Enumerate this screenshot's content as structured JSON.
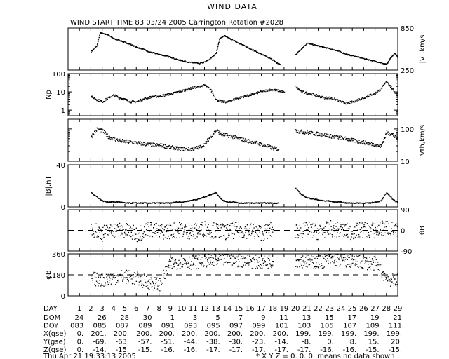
{
  "title": "WIND DATA",
  "subtitle": "WIND START TIME  83 03/24 2005 Carrington Rotation #2028",
  "footer_left": "Thu Apr 21 19:33:13 2005",
  "footer_right": "* X Y Z = 0. 0. 0. means no data shown",
  "chart_data": [
    {
      "type": "scatter",
      "name": "speed",
      "ylabel": "|V|,km/s",
      "ylabel_side": "right",
      "ylim": [
        250,
        850
      ],
      "yticks": [
        250,
        850
      ],
      "x": [
        1.0,
        1.5,
        2.0,
        2.5,
        2.8,
        3.0,
        3.5,
        4.0,
        4.5,
        5.0,
        5.5,
        6.0,
        6.5,
        7.0,
        7.5,
        8.0,
        8.5,
        9.0,
        9.5,
        10.0,
        10.5,
        11.0,
        11.5,
        12.0,
        12.5,
        13.0,
        13.3,
        13.7,
        14.0,
        14.5,
        15.0,
        15.5,
        16.0,
        16.5,
        17.0,
        17.5,
        18.0,
        18.3,
        18.7,
        19.0,
        19.3,
        19.7,
        20.0,
        20.5,
        21.0,
        21.5,
        22.0,
        22.5,
        23.0,
        23.5,
        24.0,
        24.5,
        25.0,
        25.5,
        26.0,
        26.5,
        27.0,
        27.5,
        27.8,
        28.0,
        28.3,
        28.7,
        29.0
      ],
      "values": [
        null,
        null,
        520,
        600,
        790,
        780,
        760,
        700,
        680,
        650,
        620,
        580,
        560,
        520,
        500,
        480,
        460,
        440,
        410,
        390,
        370,
        360,
        350,
        370,
        420,
        500,
        700,
        750,
        720,
        680,
        640,
        600,
        560,
        520,
        480,
        440,
        400,
        360,
        330,
        null,
        null,
        null,
        480,
        560,
        640,
        620,
        600,
        580,
        560,
        540,
        510,
        480,
        460,
        440,
        420,
        400,
        380,
        360,
        340,
        340,
        420,
        500,
        430
      ]
    },
    {
      "type": "scatter",
      "name": "density",
      "ylabel": "Np",
      "ylabel_side": "left",
      "yscale": "log",
      "ylim": [
        0.5,
        100
      ],
      "yticks": [
        1,
        10,
        100
      ],
      "x": [
        1.0,
        1.5,
        2.0,
        2.5,
        3.0,
        3.5,
        4.0,
        4.5,
        5.0,
        5.5,
        6.0,
        6.5,
        7.0,
        7.5,
        8.0,
        8.5,
        9.0,
        9.5,
        10.0,
        10.5,
        11.0,
        11.5,
        12.0,
        12.5,
        13.0,
        13.5,
        14.0,
        14.5,
        15.0,
        15.5,
        16.0,
        16.5,
        17.0,
        17.5,
        18.0,
        18.5,
        19.0,
        19.5,
        20.0,
        20.5,
        21.0,
        21.5,
        22.0,
        22.5,
        23.0,
        23.5,
        24.0,
        24.5,
        25.0,
        25.5,
        26.0,
        26.5,
        27.0,
        27.5,
        28.0,
        28.5,
        29.0
      ],
      "values": [
        null,
        null,
        6,
        4,
        3,
        5,
        7,
        5,
        4,
        3,
        3,
        4,
        5,
        6,
        6,
        7,
        8,
        10,
        12,
        15,
        18,
        20,
        25,
        14,
        4,
        3,
        3,
        4,
        5,
        6,
        7,
        9,
        11,
        13,
        14,
        12,
        10,
        null,
        20,
        11,
        9,
        8,
        6,
        5,
        5,
        4,
        3,
        2.5,
        3,
        4,
        5,
        7,
        9,
        15,
        40,
        15,
        6
      ]
    },
    {
      "type": "scatter",
      "name": "thermal-speed",
      "ylabel": "Vth,km/s",
      "ylabel_side": "right",
      "yscale": "log",
      "ylim": [
        10,
        200
      ],
      "yticks": [
        10,
        100
      ],
      "x": [
        1.0,
        1.5,
        2.0,
        2.5,
        3.0,
        3.5,
        4.0,
        4.5,
        5.0,
        5.5,
        6.0,
        6.5,
        7.0,
        7.5,
        8.0,
        8.5,
        9.0,
        9.5,
        10.0,
        10.5,
        11.0,
        11.5,
        12.0,
        12.5,
        13.0,
        13.5,
        14.0,
        14.5,
        15.0,
        15.5,
        16.0,
        16.5,
        17.0,
        17.5,
        18.0,
        18.5,
        19.0,
        19.5,
        20.0,
        20.5,
        21.0,
        21.5,
        22.0,
        22.5,
        23.0,
        23.5,
        24.0,
        24.5,
        25.0,
        25.5,
        26.0,
        26.5,
        27.0,
        27.5,
        28.0,
        28.5,
        29.0
      ],
      "values": [
        null,
        null,
        60,
        100,
        90,
        60,
        50,
        45,
        42,
        40,
        38,
        36,
        34,
        33,
        32,
        30,
        28,
        26,
        25,
        24,
        25,
        28,
        35,
        60,
        95,
        70,
        65,
        58,
        52,
        46,
        42,
        38,
        34,
        30,
        26,
        24,
        null,
        null,
        90,
        85,
        80,
        75,
        72,
        68,
        62,
        58,
        55,
        50,
        46,
        42,
        40,
        36,
        33,
        30,
        80,
        70,
        45
      ]
    },
    {
      "type": "scatter",
      "name": "magnetic-field",
      "ylabel": "|B|,nT",
      "ylabel_side": "left",
      "ylim": [
        0,
        40
      ],
      "yticks": [
        0,
        40
      ],
      "x": [
        1.0,
        1.5,
        2.0,
        2.5,
        3.0,
        3.5,
        4.0,
        4.5,
        5.0,
        5.5,
        6.0,
        6.5,
        7.0,
        7.5,
        8.0,
        8.5,
        9.0,
        9.5,
        10.0,
        10.5,
        11.0,
        11.5,
        12.0,
        12.5,
        13.0,
        13.5,
        14.0,
        14.5,
        15.0,
        15.5,
        16.0,
        16.5,
        17.0,
        17.5,
        18.0,
        18.5,
        19.0,
        19.5,
        20.0,
        20.5,
        21.0,
        21.5,
        22.0,
        22.5,
        23.0,
        23.5,
        24.0,
        24.5,
        25.0,
        25.5,
        26.0,
        26.5,
        27.0,
        27.5,
        28.0,
        28.5,
        29.0
      ],
      "values": [
        null,
        null,
        14,
        10,
        6,
        5,
        5,
        5,
        4,
        4,
        4,
        4,
        4,
        4,
        4,
        4,
        4,
        5,
        5,
        6,
        7,
        8,
        10,
        12,
        14,
        7,
        5,
        5,
        4,
        4,
        4,
        4,
        4,
        4,
        4,
        4,
        null,
        null,
        18,
        12,
        9,
        8,
        7,
        6,
        6,
        5,
        5,
        4,
        4,
        4,
        4,
        4,
        5,
        6,
        14,
        8,
        4
      ]
    },
    {
      "type": "scatter",
      "name": "field-latitude",
      "ylabel": "θB",
      "ylabel_side": "right",
      "ylim": [
        -90,
        90
      ],
      "yticks": [
        -90,
        0,
        90
      ],
      "reference_line": 0,
      "spread": 35,
      "x": [
        1.0,
        2.0,
        3.0,
        4.0,
        5.0,
        6.0,
        7.0,
        8.0,
        9.0,
        10.0,
        11.0,
        12.0,
        13.0,
        14.0,
        15.0,
        16.0,
        17.0,
        18.0,
        19.0,
        20.0,
        21.0,
        22.0,
        23.0,
        24.0,
        25.0,
        26.0,
        27.0,
        28.0,
        29.0
      ],
      "values": [
        null,
        10,
        -10,
        5,
        0,
        -15,
        10,
        -5,
        0,
        5,
        -5,
        10,
        0,
        -5,
        5,
        0,
        -10,
        5,
        null,
        0,
        5,
        -5,
        10,
        0,
        -5,
        5,
        0,
        15,
        -5
      ]
    },
    {
      "type": "scatter",
      "name": "field-longitude",
      "ylabel": "φB",
      "ylabel_side": "left",
      "ylim": [
        0,
        360
      ],
      "yticks": [
        0,
        180,
        360
      ],
      "reference_line": 180,
      "spread": 60,
      "x": [
        1.0,
        2.0,
        3.0,
        4.0,
        5.0,
        6.0,
        7.0,
        8.0,
        9.0,
        10.0,
        11.0,
        12.0,
        13.0,
        14.0,
        15.0,
        16.0,
        17.0,
        18.0,
        19.0,
        20.0,
        21.0,
        22.0,
        23.0,
        24.0,
        25.0,
        26.0,
        27.0,
        28.0,
        29.0
      ],
      "values": [
        null,
        150,
        140,
        160,
        170,
        150,
        120,
        100,
        280,
        300,
        290,
        310,
        300,
        320,
        310,
        300,
        290,
        300,
        null,
        310,
        300,
        290,
        320,
        310,
        300,
        290,
        280,
        150,
        130
      ]
    }
  ],
  "x_axis": {
    "xlim": [
      0,
      29
    ],
    "ticks": [
      1,
      2,
      3,
      4,
      5,
      6,
      7,
      8,
      9,
      10,
      11,
      12,
      13,
      14,
      15,
      16,
      17,
      18,
      19,
      20,
      21,
      22,
      23,
      24,
      25,
      26,
      27,
      28,
      29
    ]
  },
  "table": {
    "day_label": "DAY",
    "days": [
      "1",
      "2",
      "3",
      "4",
      "5",
      "6",
      "7",
      "8",
      "9",
      "10",
      "11",
      "12",
      "13",
      "14",
      "15",
      "16",
      "17",
      "18",
      "19",
      "20",
      "21",
      "22",
      "23",
      "24",
      "25",
      "26",
      "27",
      "28",
      "29"
    ],
    "rows": [
      {
        "label": "DOM",
        "values": [
          "24",
          "26",
          "28",
          "30",
          "1",
          "3",
          "5",
          "7",
          "9",
          "11",
          "13",
          "15",
          "17",
          "19",
          "21"
        ]
      },
      {
        "label": "DOY",
        "values": [
          "083",
          "085",
          "087",
          "089",
          "091",
          "093",
          "095",
          "097",
          "099",
          "101",
          "103",
          "105",
          "107",
          "109",
          "111"
        ]
      },
      {
        "label": "X(gse)",
        "values": [
          "0.",
          "201.",
          "200.",
          "200.",
          "200.",
          "200.",
          "200.",
          "200.",
          "200.",
          "200.",
          "199.",
          "199.",
          "199.",
          "199.",
          "199."
        ]
      },
      {
        "label": "Y(gse)",
        "values": [
          "0.",
          "-69.",
          "-63.",
          "-57.",
          "-51.",
          "-44.",
          "-38.",
          "-30.",
          "-23.",
          "-14.",
          "-8.",
          "0.",
          "8.",
          "15.",
          "20."
        ]
      },
      {
        "label": "Z(gse)",
        "values": [
          "0.",
          "-14.",
          "-15.",
          "-15.",
          "-16.",
          "-16.",
          "-17.",
          "-17.",
          "-17.",
          "-17.",
          "-17.",
          "-16.",
          "-16.",
          "-15.",
          "-15."
        ]
      }
    ]
  }
}
